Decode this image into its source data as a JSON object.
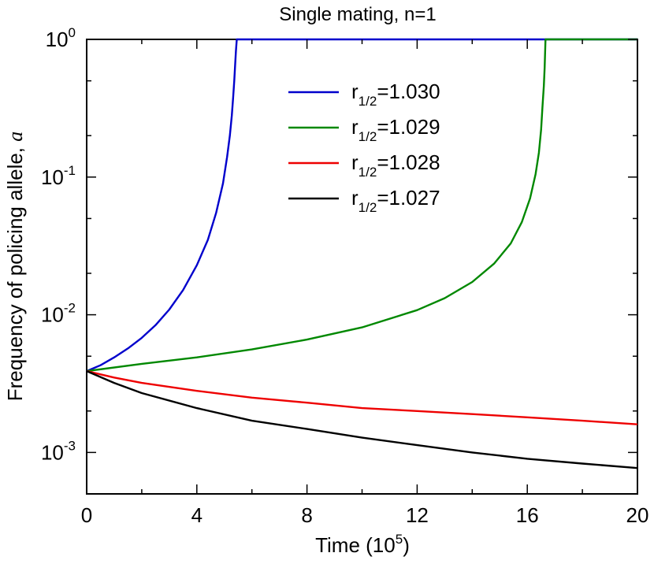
{
  "chart_data": {
    "type": "line",
    "title": "Single mating, n=1",
    "xlabel": {
      "text": "Time (10",
      "sup": "5",
      "close": ")"
    },
    "ylabel": {
      "text": "Frequency of policing allele, ",
      "var": "a"
    },
    "xlim": [
      0,
      20
    ],
    "ylim": [
      0.0005,
      1
    ],
    "yscale": "log",
    "x_ticks": [
      0,
      4,
      8,
      12,
      16,
      20
    ],
    "x_tick_labels": [
      "0",
      "4",
      "8",
      "12",
      "16",
      "20"
    ],
    "y_ticks": [
      {
        "value": 0.001,
        "base": "10",
        "exp": "-3"
      },
      {
        "value": 0.01,
        "base": "10",
        "exp": "-2"
      },
      {
        "value": 0.1,
        "base": "10",
        "exp": "-1"
      },
      {
        "value": 1,
        "base": "10",
        "exp": "0"
      }
    ],
    "legend_position": "top-center",
    "series": [
      {
        "name": "r1/2=1.030",
        "label_main": "r",
        "label_sub": "1/2",
        "label_value": "=1.030",
        "color": "#0000cc",
        "x": [
          0,
          0.5,
          1,
          1.5,
          2,
          2.5,
          3,
          3.5,
          4,
          4.4,
          4.7,
          4.95,
          5.1,
          5.2,
          5.27,
          5.32,
          5.36,
          5.39,
          5.42,
          5.45,
          6,
          8,
          10,
          12,
          14,
          16,
          18,
          20
        ],
        "y": [
          0.0039,
          0.0043,
          0.0049,
          0.0057,
          0.0068,
          0.0084,
          0.0109,
          0.0151,
          0.0229,
          0.035,
          0.055,
          0.09,
          0.14,
          0.2,
          0.28,
          0.38,
          0.5,
          0.65,
          0.82,
          1,
          1,
          1,
          1,
          1,
          1,
          1,
          1,
          1
        ]
      },
      {
        "name": "r1/2=1.029",
        "label_main": "r",
        "label_sub": "1/2",
        "label_value": "=1.029",
        "color": "#008800",
        "x": [
          0,
          2,
          4,
          6,
          8,
          10,
          12,
          13,
          14,
          14.8,
          15.4,
          15.8,
          16.1,
          16.3,
          16.42,
          16.5,
          16.55,
          16.6,
          16.63,
          16.66,
          17,
          18,
          20
        ],
        "y": [
          0.0039,
          0.0044,
          0.0049,
          0.0056,
          0.0066,
          0.0081,
          0.0108,
          0.0132,
          0.0173,
          0.0236,
          0.033,
          0.047,
          0.07,
          0.105,
          0.15,
          0.22,
          0.32,
          0.46,
          0.62,
          1,
          1,
          1,
          1
        ]
      },
      {
        "name": "r1/2=1.028",
        "label_main": "r",
        "label_sub": "1/2",
        "label_value": "=1.028",
        "color": "#ee0000",
        "x": [
          0,
          1,
          2,
          4,
          6,
          8,
          10,
          12,
          14,
          16,
          18,
          20
        ],
        "y": [
          0.0039,
          0.0035,
          0.0032,
          0.0028,
          0.0025,
          0.0023,
          0.0021,
          0.002,
          0.0019,
          0.0018,
          0.0017,
          0.0016
        ]
      },
      {
        "name": "r1/2=1.027",
        "label_main": "r",
        "label_sub": "1/2",
        "label_value": "=1.027",
        "color": "#000000",
        "x": [
          0,
          1,
          2,
          4,
          6,
          8,
          10,
          12,
          14,
          16,
          18,
          20
        ],
        "y": [
          0.0039,
          0.0032,
          0.0027,
          0.0021,
          0.0017,
          0.00148,
          0.00128,
          0.00113,
          0.001,
          0.0009,
          0.00083,
          0.00077
        ]
      }
    ]
  }
}
